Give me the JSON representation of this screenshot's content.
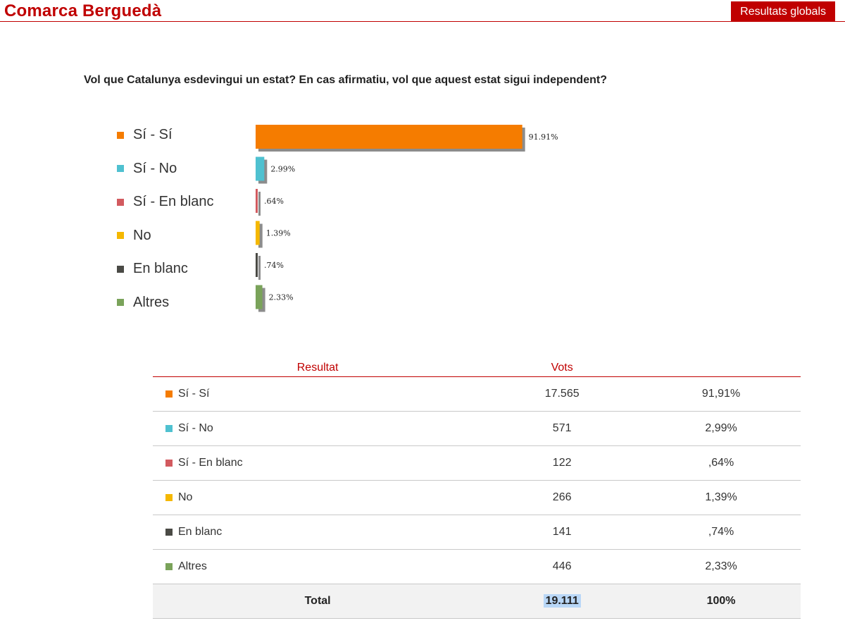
{
  "header": {
    "title": "Comarca Berguedà",
    "global_button": "Resultats globals"
  },
  "question": "Vol que Catalunya esdevingui un estat? En cas afirmatiu, vol que aquest estat sigui independent?",
  "chart_data": {
    "type": "bar",
    "orientation": "horizontal",
    "categories": [
      "Sí - Sí",
      "Sí - No",
      "Sí - En blanc",
      "No",
      "En blanc",
      "Altres"
    ],
    "values": [
      91.91,
      2.99,
      0.64,
      1.39,
      0.74,
      2.33
    ],
    "value_labels": [
      "91.91%",
      "2.99%",
      ".64%",
      "1.39%",
      ".74%",
      "2.33%"
    ],
    "colors": [
      "#f57c00",
      "#4fc1d0",
      "#d25a5f",
      "#f5b800",
      "#4a4a45",
      "#7aa35a"
    ],
    "xlim": [
      0,
      100
    ],
    "grid": false,
    "legend": "left"
  },
  "table": {
    "headers": [
      "Resultat",
      "Vots"
    ],
    "rows": [
      {
        "label": "Sí - Sí",
        "votes": "17.565",
        "percent": "91,91%",
        "color": "#f57c00"
      },
      {
        "label": "Sí - No",
        "votes": "571",
        "percent": "2,99%",
        "color": "#4fc1d0"
      },
      {
        "label": "Sí - En blanc",
        "votes": "122",
        "percent": ",64%",
        "color": "#d25a5f"
      },
      {
        "label": "No",
        "votes": "266",
        "percent": "1,39%",
        "color": "#f5b800"
      },
      {
        "label": "En blanc",
        "votes": "141",
        "percent": ",74%",
        "color": "#4a4a45"
      },
      {
        "label": "Altres",
        "votes": "446",
        "percent": "2,33%",
        "color": "#7aa35a"
      }
    ],
    "total": {
      "label": "Total",
      "votes": "19.111",
      "percent": "100%"
    }
  }
}
